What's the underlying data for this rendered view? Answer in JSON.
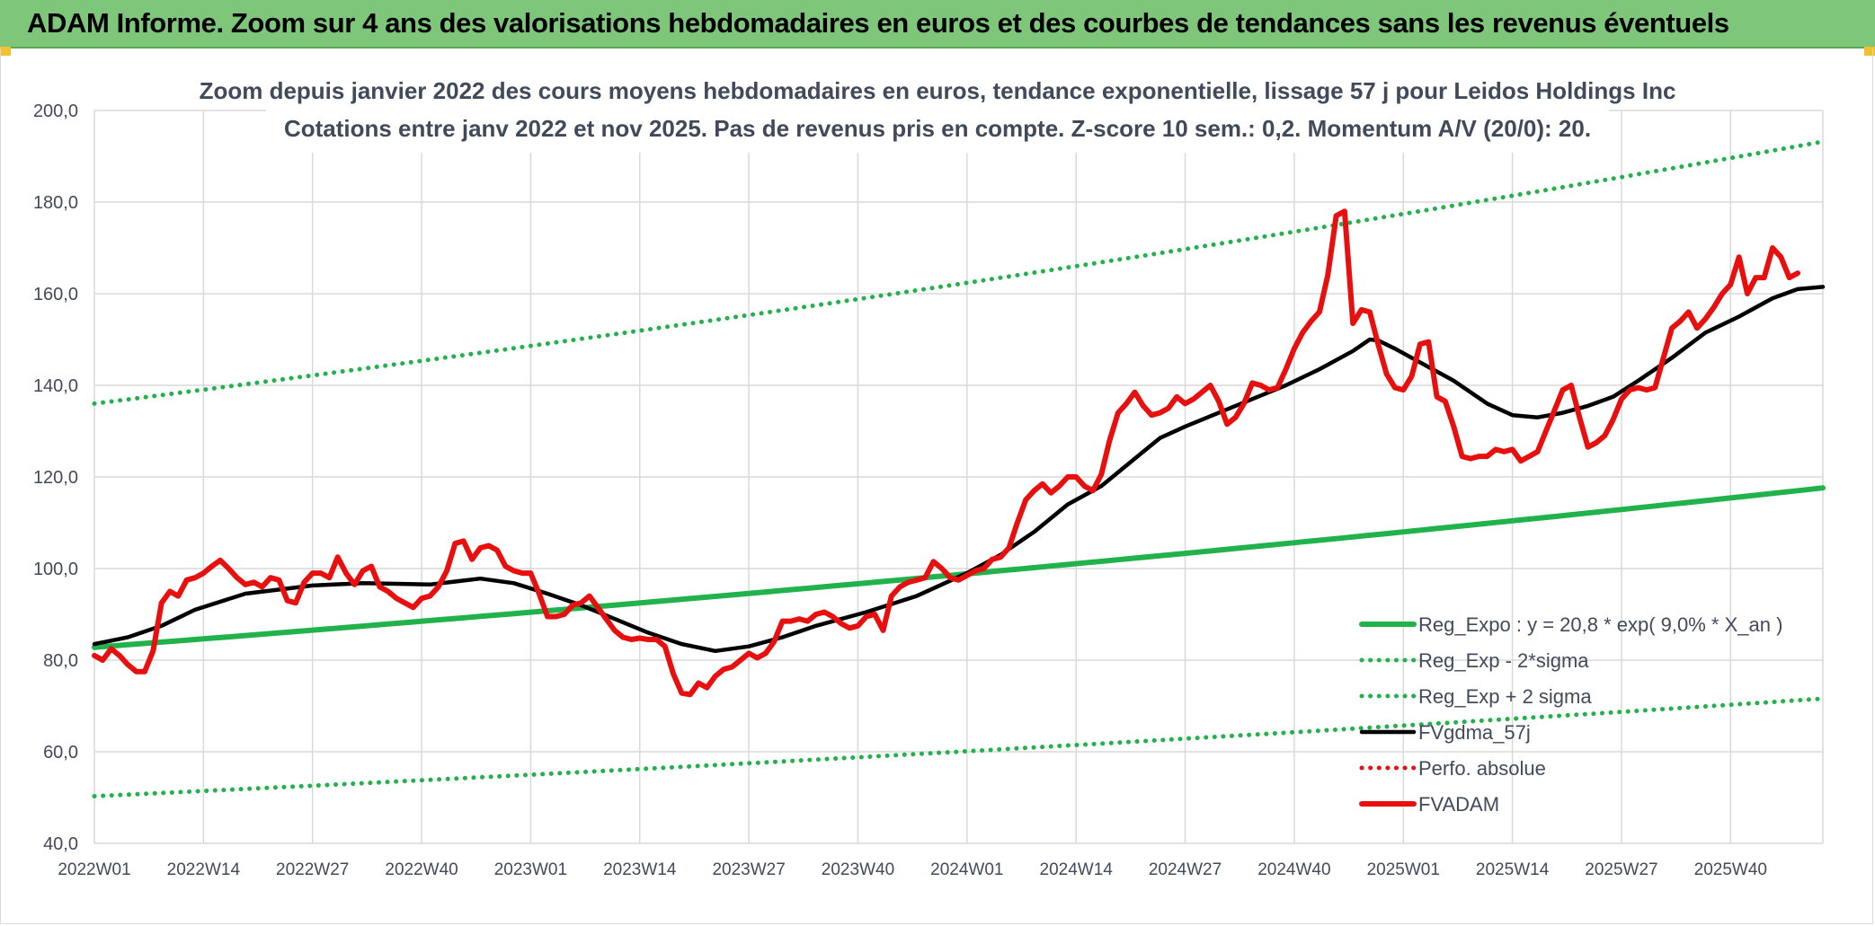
{
  "header": {
    "title": "ADAM Informe. Zoom sur 4 ans des valorisations hebdomadaires en euros et des courbes de tendances sans les revenus éventuels"
  },
  "colors": {
    "banner": "#7dc67a",
    "reg_expo": "#22b24c",
    "fvgdma": "#000000",
    "fvadam": "#e8100f",
    "perfo": "#e8100f",
    "grid": "#d9d9d9"
  },
  "chart_data": {
    "type": "line",
    "title_line1": "Zoom depuis janvier 2022 des cours moyens hebdomadaires en euros, tendance exponentielle, lissage 57 j pour Leidos Holdings Inc",
    "title_line2": "Cotations entre janv 2022 et nov 2025. Pas de revenus pris en compte. Z-score 10 sem.: 0,2. Momentum A/V (20/0): 20.",
    "ylim": [
      40,
      200
    ],
    "yticks": [
      "40,0",
      "60,0",
      "80,0",
      "100,0",
      "120,0",
      "140,0",
      "160,0",
      "180,0",
      "200,0"
    ],
    "ytick_values": [
      40,
      60,
      80,
      100,
      120,
      140,
      160,
      180,
      200
    ],
    "xticks": [
      "2022W01",
      "2022W14",
      "2022W27",
      "2022W40",
      "2023W01",
      "2023W14",
      "2023W27",
      "2023W40",
      "2024W01",
      "2024W14",
      "2024W27",
      "2024W40",
      "2025W01",
      "2025W14",
      "2025W27",
      "2025W40"
    ],
    "xtick_index": [
      0,
      13,
      26,
      39,
      52,
      65,
      78,
      91,
      104,
      117,
      130,
      143,
      156,
      169,
      182,
      195
    ],
    "n_weeks": 207,
    "grid": true,
    "legend_position": "bottom-right",
    "series": [
      {
        "name": "Reg_Expo : y = 20,8 * exp( 9,0% *  X_an )",
        "style": "solid-thick",
        "color": "#22b24c",
        "start": 82.8,
        "end": 117.6
      },
      {
        "name": "Reg_Exp - 2*sigma",
        "style": "dotted",
        "color": "#22b24c",
        "start": 50.3,
        "end": 71.6
      },
      {
        "name": "Reg_Exp + 2 sigma",
        "style": "dotted",
        "color": "#22b24c",
        "start": 136.0,
        "end": 193.2
      },
      {
        "name": "FVgdma_57j",
        "style": "solid",
        "color": "#000000",
        "points": [
          [
            0,
            83.5
          ],
          [
            4,
            85.0
          ],
          [
            8,
            87.5
          ],
          [
            12,
            91.0
          ],
          [
            18,
            94.5
          ],
          [
            26,
            96.3
          ],
          [
            32,
            96.8
          ],
          [
            40,
            96.5
          ],
          [
            46,
            97.8
          ],
          [
            50,
            96.8
          ],
          [
            54,
            94.5
          ],
          [
            58,
            92.0
          ],
          [
            62,
            89.0
          ],
          [
            66,
            86.0
          ],
          [
            70,
            83.5
          ],
          [
            74,
            82.0
          ],
          [
            78,
            83.0
          ],
          [
            82,
            85.0
          ],
          [
            86,
            87.5
          ],
          [
            92,
            90.5
          ],
          [
            98,
            94.0
          ],
          [
            104,
            99.0
          ],
          [
            108,
            103.0
          ],
          [
            112,
            108.0
          ],
          [
            116,
            114.0
          ],
          [
            120,
            118.0
          ],
          [
            124,
            124.0
          ],
          [
            127,
            128.5
          ],
          [
            130,
            131.0
          ],
          [
            134,
            134.0
          ],
          [
            138,
            137.0
          ],
          [
            142,
            140.0
          ],
          [
            146,
            143.5
          ],
          [
            150,
            147.5
          ],
          [
            152,
            150.0
          ],
          [
            153,
            149.8
          ],
          [
            155,
            148.0
          ],
          [
            158,
            145.0
          ],
          [
            162,
            141.0
          ],
          [
            166,
            136.0
          ],
          [
            169,
            133.5
          ],
          [
            172,
            133.0
          ],
          [
            175,
            134.0
          ],
          [
            178,
            135.5
          ],
          [
            181,
            137.5
          ],
          [
            184,
            141.0
          ],
          [
            188,
            146.0
          ],
          [
            192,
            151.5
          ],
          [
            196,
            155.0
          ],
          [
            200,
            159.0
          ],
          [
            203,
            161.0
          ],
          [
            206,
            161.5
          ]
        ]
      },
      {
        "name": "Perfo. absolue",
        "style": "dotted",
        "color": "#e8100f",
        "points": []
      },
      {
        "name": "FVADAM",
        "style": "solid-thick",
        "color": "#e8100f",
        "points": [
          [
            0,
            81.0
          ],
          [
            1,
            80.0
          ],
          [
            2,
            82.5
          ],
          [
            3,
            81.0
          ],
          [
            4,
            79.0
          ],
          [
            5,
            77.5
          ],
          [
            6,
            77.5
          ],
          [
            7,
            82.0
          ],
          [
            8,
            92.5
          ],
          [
            9,
            95.0
          ],
          [
            10,
            94.0
          ],
          [
            11,
            97.5
          ],
          [
            12,
            98.0
          ],
          [
            13,
            99.0
          ],
          [
            14,
            100.5
          ],
          [
            15,
            101.8
          ],
          [
            16,
            100.0
          ],
          [
            17,
            98.0
          ],
          [
            18,
            96.5
          ],
          [
            19,
            97.0
          ],
          [
            20,
            96.0
          ],
          [
            21,
            98.0
          ],
          [
            22,
            97.5
          ],
          [
            23,
            93.0
          ],
          [
            24,
            92.5
          ],
          [
            25,
            97.0
          ],
          [
            26,
            99.0
          ],
          [
            27,
            99.0
          ],
          [
            28,
            98.0
          ],
          [
            29,
            102.5
          ],
          [
            30,
            99.0
          ],
          [
            31,
            96.5
          ],
          [
            32,
            99.5
          ],
          [
            33,
            100.5
          ],
          [
            34,
            96.0
          ],
          [
            35,
            95.0
          ],
          [
            36,
            93.5
          ],
          [
            37,
            92.5
          ],
          [
            38,
            91.5
          ],
          [
            39,
            93.5
          ],
          [
            40,
            94.0
          ],
          [
            41,
            96.0
          ],
          [
            42,
            99.5
          ],
          [
            43,
            105.5
          ],
          [
            44,
            106.0
          ],
          [
            45,
            102.0
          ],
          [
            46,
            104.5
          ],
          [
            47,
            105.0
          ],
          [
            48,
            104.0
          ],
          [
            49,
            100.5
          ],
          [
            50,
            99.5
          ],
          [
            51,
            99.0
          ],
          [
            52,
            99.0
          ],
          [
            53,
            94.5
          ],
          [
            54,
            89.5
          ],
          [
            55,
            89.5
          ],
          [
            56,
            90.0
          ],
          [
            57,
            92.0
          ],
          [
            58,
            92.5
          ],
          [
            59,
            94.0
          ],
          [
            60,
            91.5
          ],
          [
            61,
            89.0
          ],
          [
            62,
            86.5
          ],
          [
            63,
            85.0
          ],
          [
            64,
            84.5
          ],
          [
            65,
            84.8
          ],
          [
            66,
            84.5
          ],
          [
            67,
            84.5
          ],
          [
            68,
            83.0
          ],
          [
            69,
            77.0
          ],
          [
            70,
            72.8
          ],
          [
            71,
            72.5
          ],
          [
            72,
            75.0
          ],
          [
            73,
            74.0
          ],
          [
            74,
            76.5
          ],
          [
            75,
            78.0
          ],
          [
            76,
            78.5
          ],
          [
            77,
            80.0
          ],
          [
            78,
            81.5
          ],
          [
            79,
            80.5
          ],
          [
            80,
            81.5
          ],
          [
            81,
            84.0
          ],
          [
            82,
            88.5
          ],
          [
            83,
            88.5
          ],
          [
            84,
            89.0
          ],
          [
            85,
            88.5
          ],
          [
            86,
            90.0
          ],
          [
            87,
            90.5
          ],
          [
            88,
            89.5
          ],
          [
            89,
            88.0
          ],
          [
            90,
            87.0
          ],
          [
            91,
            87.5
          ],
          [
            92,
            89.5
          ],
          [
            93,
            90.0
          ],
          [
            94,
            86.5
          ],
          [
            95,
            94.0
          ],
          [
            96,
            96.0
          ],
          [
            97,
            97.0
          ],
          [
            98,
            97.5
          ],
          [
            99,
            98.0
          ],
          [
            100,
            101.5
          ],
          [
            101,
            100.0
          ],
          [
            102,
            98.0
          ],
          [
            103,
            97.5
          ],
          [
            104,
            98.5
          ],
          [
            105,
            99.5
          ],
          [
            106,
            100.0
          ],
          [
            107,
            102.0
          ],
          [
            108,
            102.5
          ],
          [
            109,
            104.5
          ],
          [
            110,
            110.0
          ],
          [
            111,
            115.0
          ],
          [
            112,
            117.0
          ],
          [
            113,
            118.5
          ],
          [
            114,
            116.5
          ],
          [
            115,
            118.0
          ],
          [
            116,
            120.0
          ],
          [
            117,
            120.0
          ],
          [
            118,
            118.0
          ],
          [
            119,
            117.0
          ],
          [
            120,
            120.5
          ],
          [
            121,
            128.0
          ],
          [
            122,
            134.0
          ],
          [
            123,
            136.0
          ],
          [
            124,
            138.5
          ],
          [
            125,
            135.5
          ],
          [
            126,
            133.5
          ],
          [
            127,
            134.0
          ],
          [
            128,
            135.0
          ],
          [
            129,
            137.5
          ],
          [
            130,
            136.0
          ],
          [
            131,
            137.0
          ],
          [
            132,
            138.5
          ],
          [
            133,
            140.0
          ],
          [
            134,
            136.5
          ],
          [
            135,
            131.5
          ],
          [
            136,
            133.0
          ],
          [
            137,
            136.0
          ],
          [
            138,
            140.5
          ],
          [
            139,
            140.0
          ],
          [
            140,
            139.0
          ],
          [
            141,
            139.5
          ],
          [
            142,
            143.5
          ],
          [
            143,
            148.0
          ],
          [
            144,
            151.5
          ],
          [
            145,
            154.0
          ],
          [
            146,
            156.0
          ],
          [
            147,
            164.0
          ],
          [
            148,
            177.0
          ],
          [
            149,
            178.0
          ],
          [
            150,
            153.5
          ],
          [
            151,
            156.5
          ],
          [
            152,
            156.0
          ],
          [
            153,
            149.0
          ],
          [
            154,
            142.5
          ],
          [
            155,
            139.5
          ],
          [
            156,
            139.0
          ],
          [
            157,
            142.0
          ],
          [
            158,
            149.0
          ],
          [
            159,
            149.5
          ],
          [
            160,
            137.5
          ],
          [
            161,
            136.5
          ],
          [
            162,
            131.0
          ],
          [
            163,
            124.5
          ],
          [
            164,
            124.0
          ],
          [
            165,
            124.5
          ],
          [
            166,
            124.5
          ],
          [
            167,
            126.0
          ],
          [
            168,
            125.5
          ],
          [
            169,
            126.0
          ],
          [
            170,
            123.5
          ],
          [
            171,
            124.5
          ],
          [
            172,
            125.5
          ],
          [
            173,
            130.0
          ],
          [
            174,
            134.5
          ],
          [
            175,
            139.0
          ],
          [
            176,
            140.0
          ],
          [
            177,
            133.0
          ],
          [
            178,
            126.5
          ],
          [
            179,
            127.5
          ],
          [
            180,
            129.0
          ],
          [
            181,
            132.5
          ],
          [
            182,
            137.0
          ],
          [
            183,
            139.0
          ],
          [
            184,
            139.5
          ],
          [
            185,
            139.0
          ],
          [
            186,
            139.5
          ],
          [
            187,
            146.0
          ],
          [
            188,
            152.5
          ],
          [
            189,
            154.0
          ],
          [
            190,
            156.0
          ],
          [
            191,
            152.5
          ],
          [
            192,
            154.5
          ],
          [
            193,
            157.0
          ],
          [
            194,
            160.0
          ],
          [
            195,
            162.0
          ],
          [
            196,
            168.0
          ],
          [
            197,
            160.0
          ],
          [
            198,
            163.5
          ],
          [
            199,
            163.5
          ],
          [
            200,
            170.0
          ],
          [
            201,
            168.0
          ],
          [
            202,
            163.5
          ],
          [
            203,
            164.5
          ]
        ]
      }
    ]
  }
}
